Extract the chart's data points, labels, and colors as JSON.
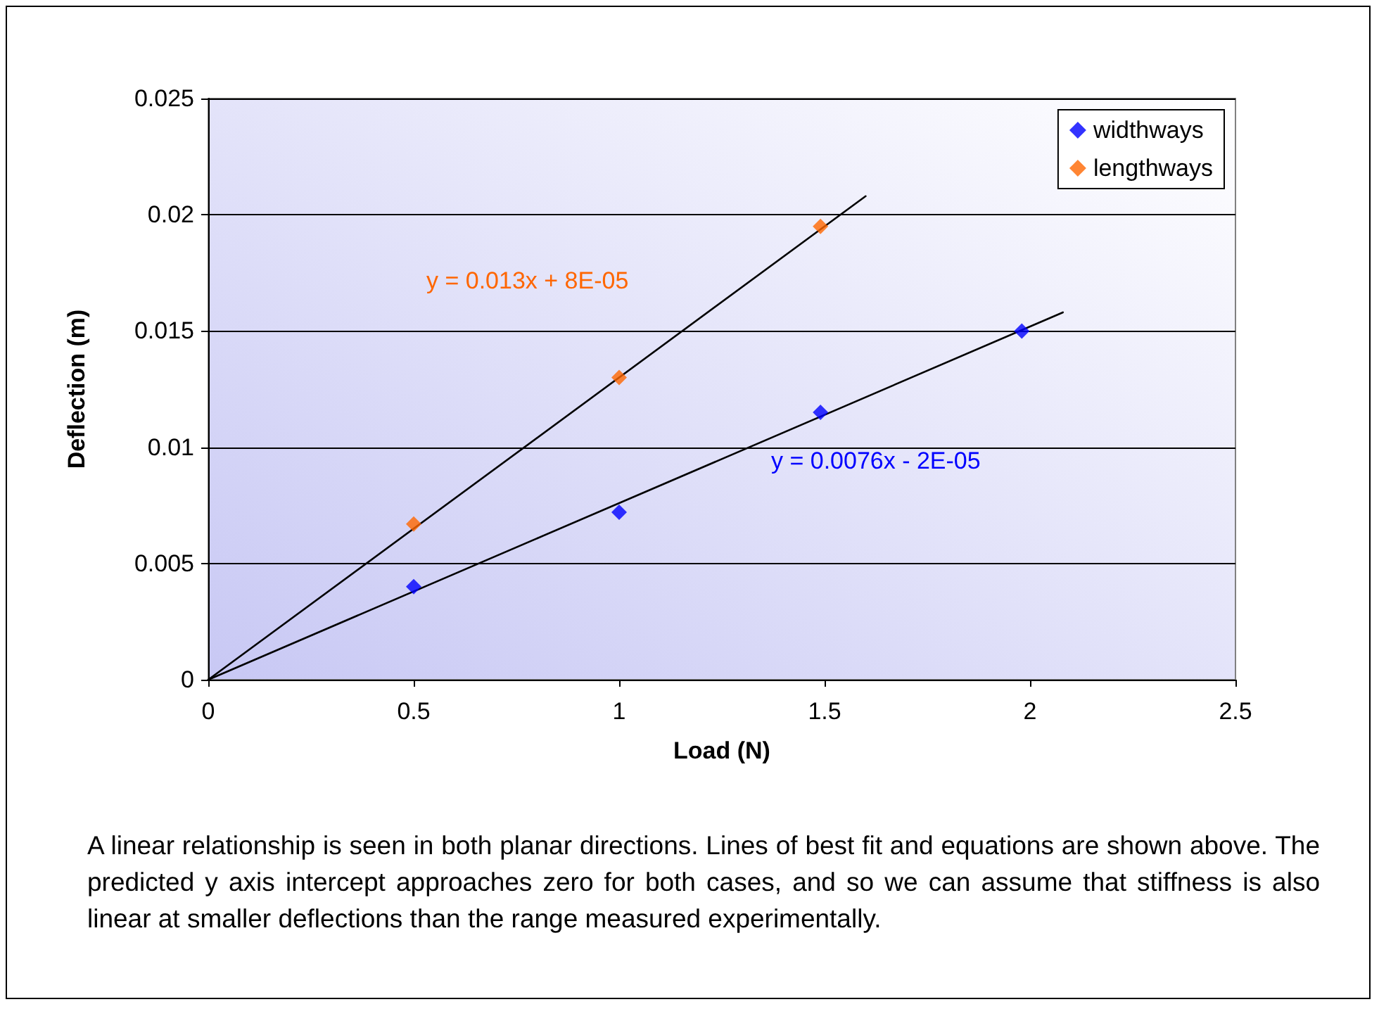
{
  "chart_data": {
    "type": "scatter",
    "xlabel": "Load (N)",
    "ylabel": "Deflection (m)",
    "xlim": [
      0,
      2.5
    ],
    "xticks": [
      0,
      0.5,
      1,
      1.5,
      2,
      2.5
    ],
    "ylim": [
      0,
      0.025
    ],
    "yticks": [
      0,
      0.005,
      0.01,
      0.015,
      0.02,
      0.025
    ],
    "grid": "y",
    "legend": "top right",
    "series": [
      {
        "name": "widthways",
        "color": "#0000ff",
        "marker": "diamond",
        "x": [
          0.5,
          1.0,
          1.49,
          1.98
        ],
        "values": [
          0.004,
          0.0072,
          0.0115,
          0.015
        ]
      },
      {
        "name": "lengthways",
        "color": "#ff6600",
        "marker": "diamond",
        "x": [
          0.5,
          1.0,
          1.49
        ],
        "values": [
          0.0067,
          0.013,
          0.0195
        ]
      },
      {
        "type": "line",
        "color": "#000000",
        "marker": "none",
        "x": [
          0,
          2.08
        ],
        "values": [
          0,
          0.0158
        ]
      },
      {
        "type": "line",
        "color": "#000000",
        "marker": "none",
        "x": [
          0,
          1.6
        ],
        "values": [
          0,
          0.0208
        ]
      }
    ],
    "annotations": [
      "y = 0.013x + 8E-05",
      "y = 0.0076x - 2E-05",
      "A linear relationship is seen in both planar directions. Lines of best fit and equations are shown above. The predicted y axis intercept approaches zero for both cases, and so we can assume that stiffness is also linear at smaller deflections than the range measured experimentally."
    ]
  }
}
